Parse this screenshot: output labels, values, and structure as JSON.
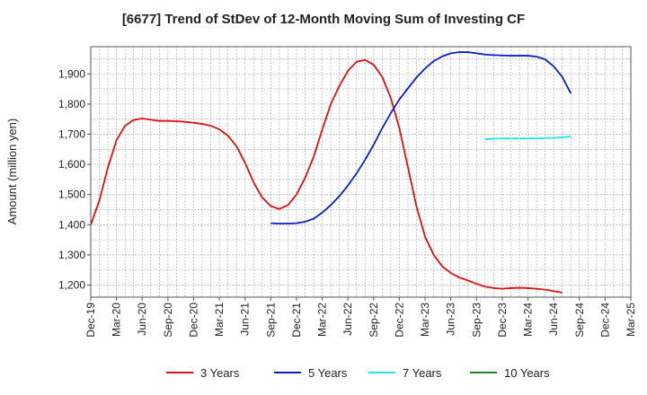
{
  "chart_data": {
    "type": "line",
    "title": "[6677]  Trend of StDev of 12-Month Moving Sum of Investing CF",
    "xlabel": "",
    "ylabel": "Amount (million yen)",
    "ylim": [
      1160,
      1990
    ],
    "yticks": [
      1200,
      1300,
      1400,
      1500,
      1600,
      1700,
      1800,
      1900
    ],
    "ytick_labels": [
      "1,200",
      "1,300",
      "1,400",
      "1,500",
      "1,600",
      "1,700",
      "1,800",
      "1,900"
    ],
    "xtick_labels": [
      "Dec-19",
      "Mar-20",
      "Jun-20",
      "Sep-20",
      "Dec-20",
      "Mar-21",
      "Jun-21",
      "Sep-21",
      "Dec-21",
      "Mar-22",
      "Jun-22",
      "Sep-22",
      "Dec-22",
      "Mar-23",
      "Jun-23",
      "Sep-23",
      "Dec-23",
      "Mar-24",
      "Jun-24",
      "Sep-24",
      "Dec-24",
      "Mar-25"
    ],
    "grid": true,
    "legend_position": "bottom",
    "series": [
      {
        "name": "3 Years",
        "color": "#dd1111",
        "start_index": 0,
        "values": [
          1400,
          1480,
          1590,
          1680,
          1728,
          1747,
          1752,
          1748,
          1744,
          1744,
          1743,
          1741,
          1738,
          1734,
          1728,
          1716,
          1695,
          1660,
          1605,
          1540,
          1490,
          1462,
          1452,
          1465,
          1500,
          1555,
          1625,
          1715,
          1800,
          1860,
          1910,
          1940,
          1946,
          1930,
          1890,
          1820,
          1720,
          1590,
          1460,
          1360,
          1300,
          1262,
          1240,
          1225,
          1215,
          1204,
          1195,
          1190,
          1188,
          1190,
          1191,
          1190,
          1188,
          1185,
          1180,
          1175
        ]
      },
      {
        "name": "5 Years",
        "color": "#0a1ecc",
        "start_index": 21,
        "values": [
          1405,
          1404,
          1404,
          1405,
          1410,
          1420,
          1440,
          1465,
          1495,
          1530,
          1570,
          1615,
          1665,
          1720,
          1770,
          1815,
          1852,
          1888,
          1918,
          1942,
          1958,
          1968,
          1972,
          1972,
          1968,
          1964,
          1962,
          1961,
          1960,
          1960,
          1960,
          1957,
          1948,
          1925,
          1890,
          1835
        ]
      },
      {
        "name": "7 Years",
        "color": "#22e5e5",
        "start_index": 46,
        "values": [
          1683,
          1685,
          1686,
          1686,
          1686,
          1686,
          1686,
          1687,
          1688,
          1690,
          1692
        ]
      },
      {
        "name": "10 Years",
        "color": "#1a8a1a",
        "start_index": 0,
        "values": []
      }
    ]
  }
}
